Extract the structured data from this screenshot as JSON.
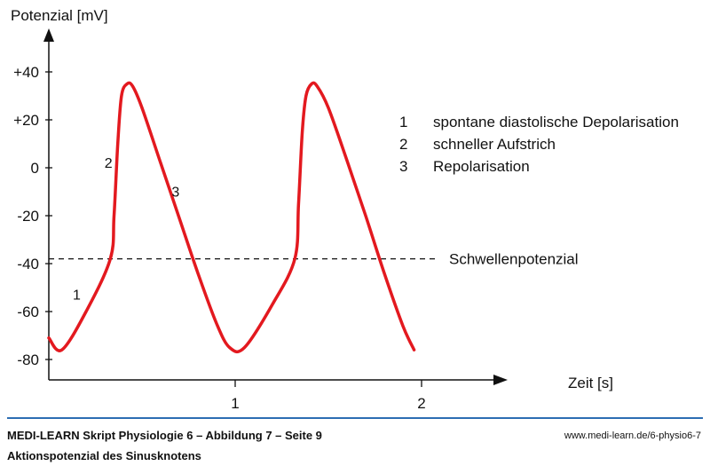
{
  "chart_data": {
    "type": "line",
    "ylabel": "Potenzial [mV]",
    "xlabel": "Zeit [s]",
    "ylim": [
      -80,
      40
    ],
    "xlim": [
      0,
      2
    ],
    "y_ticks": [
      "+40",
      "+20",
      "0",
      "-20",
      "-40",
      "-60",
      "-80"
    ],
    "y_tick_values": [
      40,
      20,
      0,
      -20,
      -40,
      -60,
      -80
    ],
    "x_ticks": [
      "1",
      "2"
    ],
    "x_tick_values": [
      1,
      2
    ],
    "series": [
      {
        "color": "#e3191f",
        "x": [
          0.0,
          0.07,
          0.2,
          0.33,
          0.35,
          0.37,
          0.39,
          0.42,
          0.45,
          0.5,
          0.6,
          0.7,
          0.8,
          0.9,
          0.97,
          1.05,
          1.2,
          1.32,
          1.34,
          1.36,
          1.38,
          1.41,
          1.44,
          1.5,
          1.6,
          1.7,
          1.8,
          1.9,
          1.96
        ],
        "y": [
          -71,
          -76,
          -60,
          -38,
          -20,
          10,
          30,
          35,
          34,
          25,
          2,
          -21,
          -44,
          -65,
          -75,
          -75,
          -57,
          -38,
          -15,
          15,
          30,
          35,
          34,
          25,
          3,
          -20,
          -44,
          -66,
          -76
        ]
      }
    ],
    "threshold": {
      "value": -38,
      "label": "Schwellenpotenzial"
    },
    "annotations": [
      {
        "label": "1",
        "x": 0.15,
        "y": -55
      },
      {
        "label": "2",
        "x": 0.32,
        "y": 0
      },
      {
        "label": "3",
        "x": 0.68,
        "y": -12
      }
    ],
    "legend": [
      {
        "num": "1",
        "text": "spontane diastolische Depolarisation"
      },
      {
        "num": "2",
        "text": "schneller Aufstrich"
      },
      {
        "num": "3",
        "text": "Repolarisation"
      }
    ]
  },
  "footer": {
    "title": "MEDI-LEARN Skript Physiologie 6 – Abbildung 7 – Seite 9",
    "subtitle": "Aktionspotenzial des Sinusknotens",
    "url": "www.medi-learn.de/6-physio6-7"
  }
}
